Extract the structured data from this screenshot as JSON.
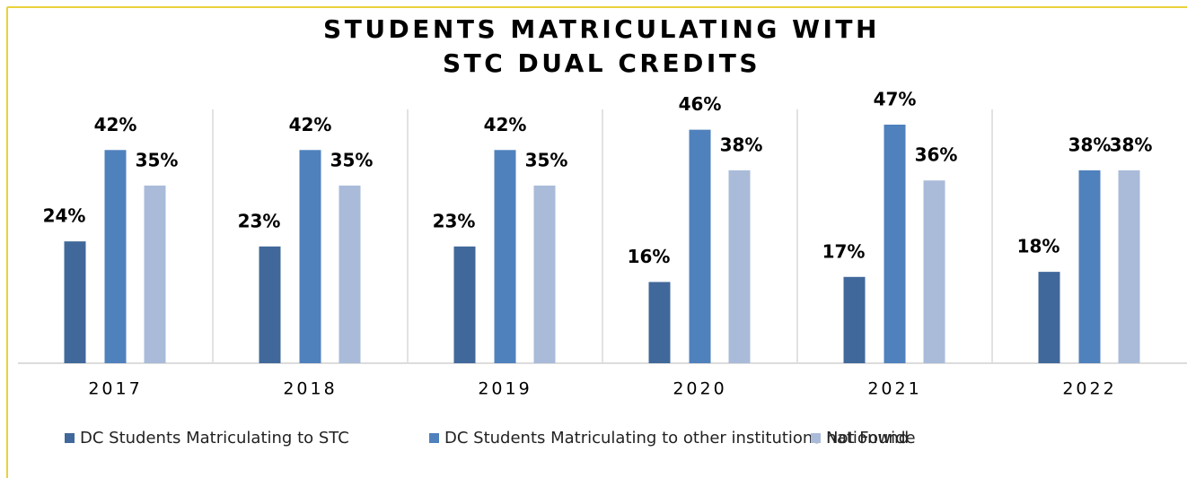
{
  "chart_data": {
    "type": "bar",
    "title": "STUDENTS MATRICULATING WITH STC DUAL CREDITS",
    "categories": [
      "2017",
      "2018",
      "2019",
      "2020",
      "2021",
      "2022"
    ],
    "series": [
      {
        "name": "DC Students Matriculating to STC",
        "color": "#41689a",
        "values": [
          24,
          23,
          23,
          16,
          17,
          18
        ],
        "value_labels": [
          "24%",
          "23%",
          "23%",
          "16%",
          "17%",
          "18%"
        ]
      },
      {
        "name": "DC Students Matriculating to other institutions nationwide",
        "color": "#4f81bd",
        "values": [
          42,
          42,
          42,
          46,
          47,
          38
        ],
        "value_labels": [
          "42%",
          "42%",
          "42%",
          "46%",
          "47%",
          "38%"
        ]
      },
      {
        "name": "Not Found",
        "color": "#a9bbd9",
        "values": [
          35,
          35,
          35,
          38,
          36,
          38
        ],
        "value_labels": [
          "35%",
          "35%",
          "35%",
          "38%",
          "36%",
          "38%"
        ]
      }
    ],
    "legend": "bottom"
  }
}
